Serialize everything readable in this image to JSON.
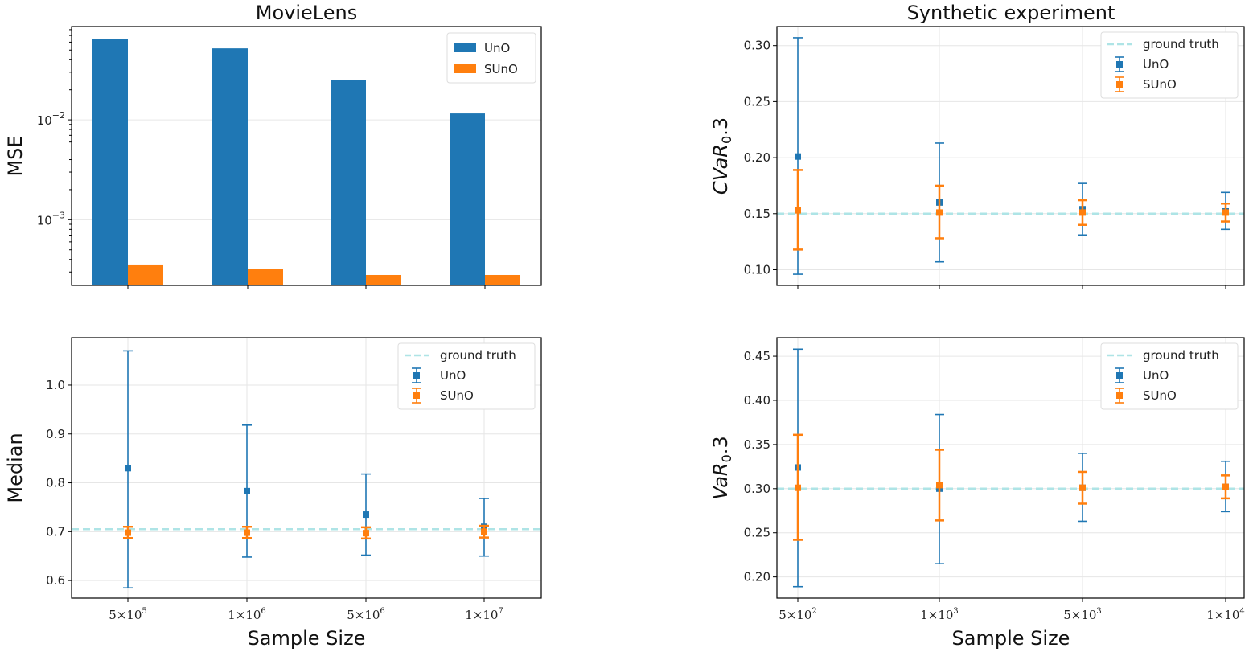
{
  "colors": {
    "uno": "#1f77b4",
    "suno": "#ff7f0e",
    "ground_truth": "#aee4e6",
    "grid": "#e6e6e6"
  },
  "titles": {
    "left": "MovieLens",
    "right": "Synthetic experiment"
  },
  "xlabel": "Sample Size",
  "chart_data": [
    {
      "id": "mse",
      "type": "bar",
      "ylabel": "MSE",
      "yscale": "log",
      "ylim": [
        0.00022,
        0.086
      ],
      "yticks": [
        {
          "mant": "10",
          "exp": "−2",
          "v": 0.01
        },
        {
          "mant": "10",
          "exp": "−3",
          "v": 0.001
        }
      ],
      "categories": [
        {
          "m": "5",
          "e": "5"
        },
        {
          "m": "1",
          "e": "6"
        },
        {
          "m": "5",
          "e": "6"
        },
        {
          "m": "1",
          "e": "7"
        }
      ],
      "show_xticklabels": false,
      "series": [
        {
          "name": "UnO",
          "values": [
            0.065,
            0.052,
            0.025,
            0.0116
          ]
        },
        {
          "name": "SUnO",
          "values": [
            0.00035,
            0.00032,
            0.00028,
            0.00028
          ]
        }
      ],
      "legend": "top-right",
      "grid": true
    },
    {
      "id": "cvar",
      "type": "errorbar",
      "ylabel": "CVaR",
      "ylabel_sub": "0",
      "ylabel_tail": ".3",
      "ylim": [
        0.086,
        0.317
      ],
      "yticks": [
        0.1,
        0.15,
        0.2,
        0.25,
        0.3
      ],
      "ytick_fmt": 2,
      "categories": [
        {
          "m": "5",
          "e": "2"
        },
        {
          "m": "1",
          "e": "3"
        },
        {
          "m": "5",
          "e": "3"
        },
        {
          "m": "1",
          "e": "4"
        }
      ],
      "show_xticklabels": false,
      "ground_truth": 0.15,
      "ground_truth_label": "ground truth",
      "series": [
        {
          "name": "UnO",
          "values": [
            0.201,
            0.16,
            0.154,
            0.152
          ],
          "lower": [
            0.096,
            0.107,
            0.131,
            0.136
          ],
          "upper": [
            0.307,
            0.213,
            0.177,
            0.169
          ]
        },
        {
          "name": "SUnO",
          "values": [
            0.153,
            0.151,
            0.151,
            0.151
          ],
          "lower": [
            0.118,
            0.128,
            0.14,
            0.143
          ],
          "upper": [
            0.189,
            0.175,
            0.162,
            0.159
          ]
        }
      ],
      "legend": "top-right",
      "grid": true
    },
    {
      "id": "median",
      "type": "errorbar",
      "ylabel": "Median",
      "ylim": [
        0.564,
        1.097
      ],
      "yticks": [
        0.6,
        0.7,
        0.8,
        0.9,
        1.0
      ],
      "ytick_fmt": 1,
      "categories": [
        {
          "m": "5",
          "e": "5"
        },
        {
          "m": "1",
          "e": "6"
        },
        {
          "m": "5",
          "e": "6"
        },
        {
          "m": "1",
          "e": "7"
        }
      ],
      "show_xticklabels": true,
      "ground_truth": 0.705,
      "ground_truth_label": "ground truth",
      "series": [
        {
          "name": "UnO",
          "values": [
            0.83,
            0.783,
            0.735,
            0.71
          ],
          "lower": [
            0.585,
            0.648,
            0.652,
            0.65
          ],
          "upper": [
            1.07,
            0.918,
            0.818,
            0.768
          ]
        },
        {
          "name": "SUnO",
          "values": [
            0.698,
            0.698,
            0.697,
            0.7
          ],
          "lower": [
            0.687,
            0.687,
            0.686,
            0.688
          ],
          "upper": [
            0.71,
            0.71,
            0.709,
            0.712
          ]
        }
      ],
      "legend": "top-right",
      "grid": true
    },
    {
      "id": "var",
      "type": "errorbar",
      "ylabel": "VaR",
      "ylabel_sub": "0",
      "ylabel_tail": ".3",
      "ylim": [
        0.176,
        0.471
      ],
      "yticks": [
        0.2,
        0.25,
        0.3,
        0.35,
        0.4,
        0.45
      ],
      "ytick_fmt": 2,
      "categories": [
        {
          "m": "5",
          "e": "2"
        },
        {
          "m": "1",
          "e": "3"
        },
        {
          "m": "5",
          "e": "3"
        },
        {
          "m": "1",
          "e": "4"
        }
      ],
      "show_xticklabels": true,
      "ground_truth": 0.3,
      "ground_truth_label": "ground truth",
      "series": [
        {
          "name": "UnO",
          "values": [
            0.324,
            0.3,
            0.301,
            0.302
          ],
          "lower": [
            0.189,
            0.215,
            0.263,
            0.274
          ],
          "upper": [
            0.458,
            0.384,
            0.34,
            0.331
          ]
        },
        {
          "name": "SUnO",
          "values": [
            0.301,
            0.304,
            0.301,
            0.302
          ],
          "lower": [
            0.242,
            0.264,
            0.283,
            0.289
          ],
          "upper": [
            0.361,
            0.344,
            0.319,
            0.315
          ]
        }
      ],
      "legend": "top-right",
      "grid": true
    }
  ]
}
